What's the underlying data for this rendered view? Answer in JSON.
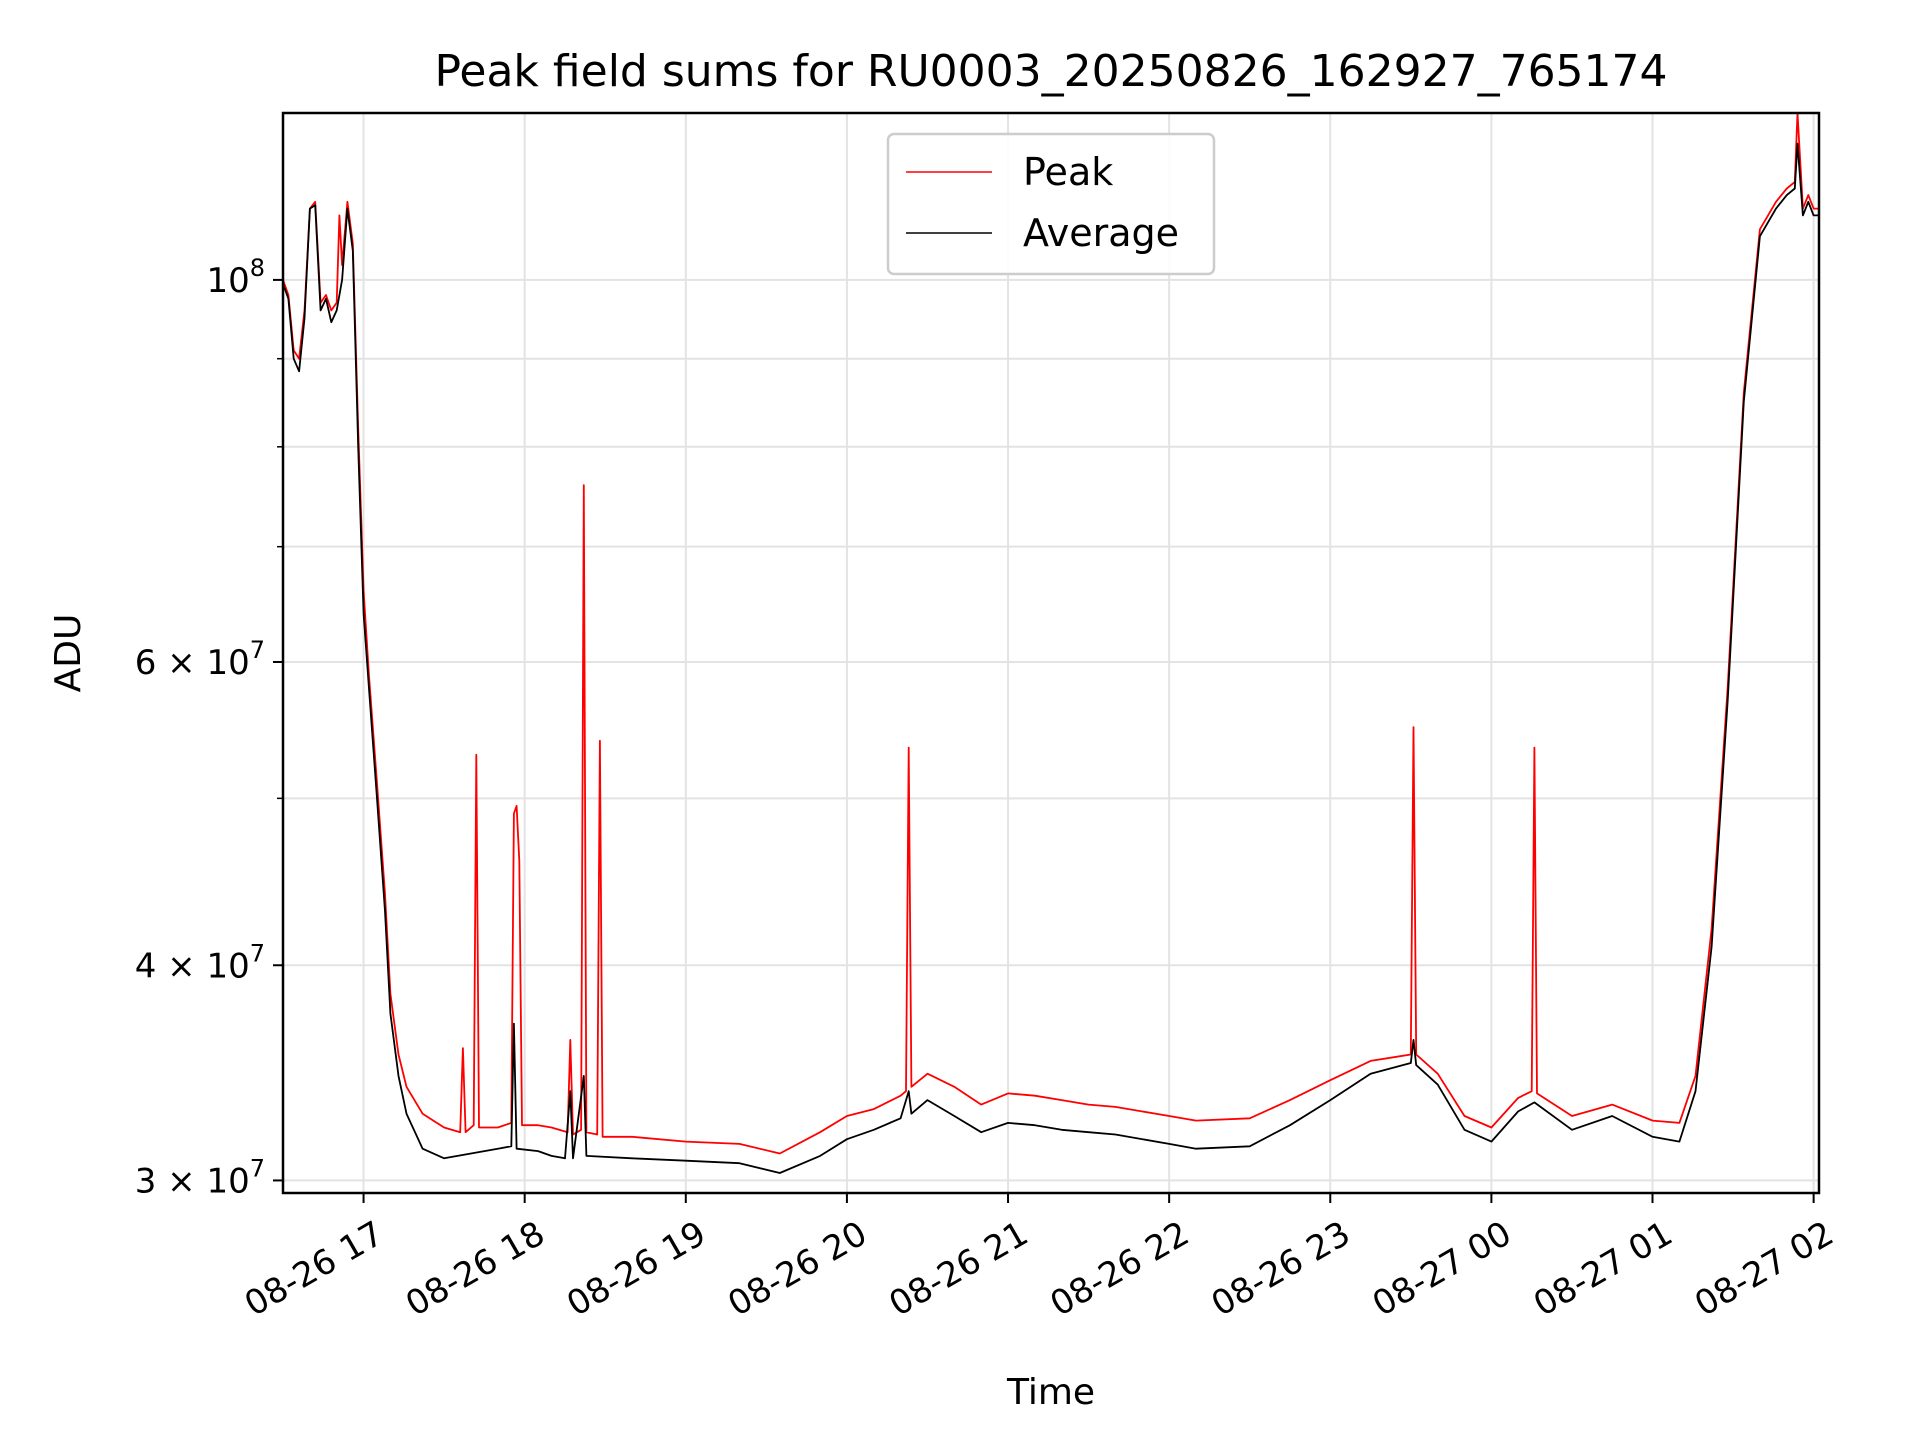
{
  "chart_data": {
    "type": "line",
    "title": "Peak field sums for RU0003_20250826_162927_765174",
    "xlabel": "Time",
    "ylabel": "ADU",
    "yscale": "log",
    "xlim": [
      "2025-08-26 16:30",
      "2025-08-27 02:02"
    ],
    "ylim": [
      29500000,
      125000000
    ],
    "grid": true,
    "legend_position": "top-center",
    "x_ticks": [
      {
        "t": "2025-08-26 17:00",
        "label": "08-26 17"
      },
      {
        "t": "2025-08-26 18:00",
        "label": "08-26 18"
      },
      {
        "t": "2025-08-26 19:00",
        "label": "08-26 19"
      },
      {
        "t": "2025-08-26 20:00",
        "label": "08-26 20"
      },
      {
        "t": "2025-08-26 21:00",
        "label": "08-26 21"
      },
      {
        "t": "2025-08-26 22:00",
        "label": "08-26 22"
      },
      {
        "t": "2025-08-26 23:00",
        "label": "08-26 23"
      },
      {
        "t": "2025-08-27 00:00",
        "label": "08-27 00"
      },
      {
        "t": "2025-08-27 01:00",
        "label": "08-27 01"
      },
      {
        "t": "2025-08-27 02:00",
        "label": "08-27 02"
      }
    ],
    "y_ticks": [
      {
        "value": 30000000,
        "mantissa": "3",
        "exponent": "7"
      },
      {
        "value": 40000000,
        "mantissa": "4",
        "exponent": "7"
      },
      {
        "value": 60000000,
        "mantissa": "6",
        "exponent": "7"
      },
      {
        "value": 100000000,
        "mantissa": "",
        "exponent": "8"
      }
    ],
    "y_minor_ticks": [
      50000000,
      70000000,
      80000000,
      90000000
    ],
    "series": [
      {
        "name": "Peak",
        "color": "#ff0000",
        "points": [
          [
            "2025-08-26 16:30",
            100000000
          ],
          [
            "2025-08-26 16:32",
            98000000
          ],
          [
            "2025-08-26 16:34",
            91000000
          ],
          [
            "2025-08-26 16:36",
            90000000
          ],
          [
            "2025-08-26 16:38",
            96000000
          ],
          [
            "2025-08-26 16:40",
            110000000
          ],
          [
            "2025-08-26 16:42",
            111000000
          ],
          [
            "2025-08-26 16:44",
            97000000
          ],
          [
            "2025-08-26 16:46",
            98000000
          ],
          [
            "2025-08-26 16:48",
            96000000
          ],
          [
            "2025-08-26 16:50",
            97000000
          ],
          [
            "2025-08-26 16:51",
            109000000
          ],
          [
            "2025-08-26 16:52",
            102000000
          ],
          [
            "2025-08-26 16:54",
            111000000
          ],
          [
            "2025-08-26 16:56",
            105000000
          ],
          [
            "2025-08-26 16:58",
            82000000
          ],
          [
            "2025-08-26 17:00",
            66000000
          ],
          [
            "2025-08-26 17:02",
            59000000
          ],
          [
            "2025-08-26 17:05",
            51000000
          ],
          [
            "2025-08-26 17:08",
            44000000
          ],
          [
            "2025-08-26 17:10",
            38500000
          ],
          [
            "2025-08-26 17:13",
            35500000
          ],
          [
            "2025-08-26 17:16",
            34000000
          ],
          [
            "2025-08-26 17:22",
            32800000
          ],
          [
            "2025-08-26 17:30",
            32200000
          ],
          [
            "2025-08-26 17:36",
            32000000
          ],
          [
            "2025-08-26 17:37",
            35800000
          ],
          [
            "2025-08-26 17:38",
            32000000
          ],
          [
            "2025-08-26 17:41",
            32300000
          ],
          [
            "2025-08-26 17:42",
            53000000
          ],
          [
            "2025-08-26 17:43",
            32200000
          ],
          [
            "2025-08-26 17:50",
            32200000
          ],
          [
            "2025-08-26 17:55",
            32400000
          ],
          [
            "2025-08-26 17:56",
            49000000
          ],
          [
            "2025-08-26 17:57",
            49500000
          ],
          [
            "2025-08-26 17:58",
            46000000
          ],
          [
            "2025-08-26 17:59",
            32300000
          ],
          [
            "2025-08-26 18:05",
            32300000
          ],
          [
            "2025-08-26 18:10",
            32200000
          ],
          [
            "2025-08-26 18:16",
            32000000
          ],
          [
            "2025-08-26 18:17",
            36200000
          ],
          [
            "2025-08-26 18:18",
            31900000
          ],
          [
            "2025-08-26 18:21",
            32100000
          ],
          [
            "2025-08-26 18:22",
            76000000
          ],
          [
            "2025-08-26 18:23",
            32000000
          ],
          [
            "2025-08-26 18:27",
            31900000
          ],
          [
            "2025-08-26 18:28",
            54000000
          ],
          [
            "2025-08-26 18:29",
            31800000
          ],
          [
            "2025-08-26 18:40",
            31800000
          ],
          [
            "2025-08-26 19:00",
            31600000
          ],
          [
            "2025-08-26 19:20",
            31500000
          ],
          [
            "2025-08-26 19:35",
            31100000
          ],
          [
            "2025-08-26 19:50",
            32000000
          ],
          [
            "2025-08-26 20:00",
            32700000
          ],
          [
            "2025-08-26 20:10",
            33000000
          ],
          [
            "2025-08-26 20:20",
            33600000
          ],
          [
            "2025-08-26 20:22",
            33800000
          ],
          [
            "2025-08-26 20:23",
            53500000
          ],
          [
            "2025-08-26 20:24",
            34000000
          ],
          [
            "2025-08-26 20:30",
            34600000
          ],
          [
            "2025-08-26 20:40",
            34000000
          ],
          [
            "2025-08-26 20:50",
            33200000
          ],
          [
            "2025-08-26 21:00",
            33700000
          ],
          [
            "2025-08-26 21:10",
            33600000
          ],
          [
            "2025-08-26 21:20",
            33400000
          ],
          [
            "2025-08-26 21:30",
            33200000
          ],
          [
            "2025-08-26 21:40",
            33100000
          ],
          [
            "2025-08-26 22:00",
            32700000
          ],
          [
            "2025-08-26 22:10",
            32500000
          ],
          [
            "2025-08-26 22:30",
            32600000
          ],
          [
            "2025-08-26 22:45",
            33400000
          ],
          [
            "2025-08-26 23:00",
            34300000
          ],
          [
            "2025-08-26 23:15",
            35200000
          ],
          [
            "2025-08-26 23:30",
            35500000
          ],
          [
            "2025-08-26 23:31",
            55000000
          ],
          [
            "2025-08-26 23:32",
            35500000
          ],
          [
            "2025-08-26 23:40",
            34600000
          ],
          [
            "2025-08-26 23:50",
            32700000
          ],
          [
            "2025-08-27 00:00",
            32200000
          ],
          [
            "2025-08-27 00:10",
            33500000
          ],
          [
            "2025-08-27 00:15",
            33800000
          ],
          [
            "2025-08-27 00:16",
            53500000
          ],
          [
            "2025-08-27 00:17",
            33700000
          ],
          [
            "2025-08-27 00:30",
            32700000
          ],
          [
            "2025-08-27 00:45",
            33200000
          ],
          [
            "2025-08-27 01:00",
            32500000
          ],
          [
            "2025-08-27 01:10",
            32400000
          ],
          [
            "2025-08-27 01:16",
            34500000
          ],
          [
            "2025-08-27 01:22",
            42000000
          ],
          [
            "2025-08-27 01:28",
            58000000
          ],
          [
            "2025-08-27 01:34",
            86000000
          ],
          [
            "2025-08-27 01:40",
            107000000
          ],
          [
            "2025-08-27 01:46",
            111000000
          ],
          [
            "2025-08-27 01:50",
            113000000
          ],
          [
            "2025-08-27 01:53",
            114000000
          ],
          [
            "2025-08-27 01:54",
            125000000
          ],
          [
            "2025-08-27 01:56",
            110000000
          ],
          [
            "2025-08-27 01:58",
            112000000
          ],
          [
            "2025-08-27 02:00",
            110000000
          ],
          [
            "2025-08-27 02:02",
            110000000
          ]
        ]
      },
      {
        "name": "Average",
        "color": "#000000",
        "points": [
          [
            "2025-08-26 16:30",
            99500000
          ],
          [
            "2025-08-26 16:32",
            97500000
          ],
          [
            "2025-08-26 16:34",
            90000000
          ],
          [
            "2025-08-26 16:36",
            88500000
          ],
          [
            "2025-08-26 16:38",
            95000000
          ],
          [
            "2025-08-26 16:40",
            110000000
          ],
          [
            "2025-08-26 16:42",
            110500000
          ],
          [
            "2025-08-26 16:44",
            96000000
          ],
          [
            "2025-08-26 16:46",
            97500000
          ],
          [
            "2025-08-26 16:48",
            94500000
          ],
          [
            "2025-08-26 16:50",
            96000000
          ],
          [
            "2025-08-26 16:52",
            100000000
          ],
          [
            "2025-08-26 16:54",
            110000000
          ],
          [
            "2025-08-26 16:56",
            104000000
          ],
          [
            "2025-08-26 16:58",
            80000000
          ],
          [
            "2025-08-26 17:00",
            64000000
          ],
          [
            "2025-08-26 17:02",
            58000000
          ],
          [
            "2025-08-26 17:05",
            50000000
          ],
          [
            "2025-08-26 17:08",
            43000000
          ],
          [
            "2025-08-26 17:10",
            37500000
          ],
          [
            "2025-08-26 17:13",
            34500000
          ],
          [
            "2025-08-26 17:16",
            32800000
          ],
          [
            "2025-08-26 17:22",
            31300000
          ],
          [
            "2025-08-26 17:30",
            30900000
          ],
          [
            "2025-08-26 17:40",
            31100000
          ],
          [
            "2025-08-26 17:50",
            31300000
          ],
          [
            "2025-08-26 17:55",
            31400000
          ],
          [
            "2025-08-26 17:56",
            37000000
          ],
          [
            "2025-08-26 17:57",
            31300000
          ],
          [
            "2025-08-26 18:05",
            31200000
          ],
          [
            "2025-08-26 18:10",
            31000000
          ],
          [
            "2025-08-26 18:15",
            30900000
          ],
          [
            "2025-08-26 18:17",
            33800000
          ],
          [
            "2025-08-26 18:18",
            30900000
          ],
          [
            "2025-08-26 18:22",
            34500000
          ],
          [
            "2025-08-26 18:23",
            31000000
          ],
          [
            "2025-08-26 18:40",
            30900000
          ],
          [
            "2025-08-26 19:00",
            30800000
          ],
          [
            "2025-08-26 19:20",
            30700000
          ],
          [
            "2025-08-26 19:35",
            30300000
          ],
          [
            "2025-08-26 19:50",
            31000000
          ],
          [
            "2025-08-26 20:00",
            31700000
          ],
          [
            "2025-08-26 20:10",
            32100000
          ],
          [
            "2025-08-26 20:20",
            32600000
          ],
          [
            "2025-08-26 20:23",
            33800000
          ],
          [
            "2025-08-26 20:24",
            32800000
          ],
          [
            "2025-08-26 20:30",
            33400000
          ],
          [
            "2025-08-26 20:40",
            32700000
          ],
          [
            "2025-08-26 20:50",
            32000000
          ],
          [
            "2025-08-26 21:00",
            32400000
          ],
          [
            "2025-08-26 21:10",
            32300000
          ],
          [
            "2025-08-26 21:20",
            32100000
          ],
          [
            "2025-08-26 21:30",
            32000000
          ],
          [
            "2025-08-26 21:40",
            31900000
          ],
          [
            "2025-08-26 22:00",
            31500000
          ],
          [
            "2025-08-26 22:10",
            31300000
          ],
          [
            "2025-08-26 22:30",
            31400000
          ],
          [
            "2025-08-26 22:45",
            32300000
          ],
          [
            "2025-08-26 23:00",
            33400000
          ],
          [
            "2025-08-26 23:15",
            34600000
          ],
          [
            "2025-08-26 23:30",
            35100000
          ],
          [
            "2025-08-26 23:31",
            36200000
          ],
          [
            "2025-08-26 23:32",
            35000000
          ],
          [
            "2025-08-26 23:40",
            34100000
          ],
          [
            "2025-08-26 23:50",
            32100000
          ],
          [
            "2025-08-27 00:00",
            31600000
          ],
          [
            "2025-08-27 00:10",
            32900000
          ],
          [
            "2025-08-27 00:16",
            33300000
          ],
          [
            "2025-08-27 00:30",
            32100000
          ],
          [
            "2025-08-27 00:45",
            32700000
          ],
          [
            "2025-08-27 01:00",
            31800000
          ],
          [
            "2025-08-27 01:10",
            31600000
          ],
          [
            "2025-08-27 01:16",
            33800000
          ],
          [
            "2025-08-27 01:22",
            41000000
          ],
          [
            "2025-08-27 01:28",
            57000000
          ],
          [
            "2025-08-27 01:34",
            85000000
          ],
          [
            "2025-08-27 01:40",
            106000000
          ],
          [
            "2025-08-27 01:46",
            110000000
          ],
          [
            "2025-08-27 01:50",
            112000000
          ],
          [
            "2025-08-27 01:53",
            113000000
          ],
          [
            "2025-08-27 01:54",
            120000000
          ],
          [
            "2025-08-27 01:56",
            109000000
          ],
          [
            "2025-08-27 01:58",
            111000000
          ],
          [
            "2025-08-27 02:00",
            109000000
          ],
          [
            "2025-08-27 02:02",
            109000000
          ]
        ]
      }
    ]
  }
}
